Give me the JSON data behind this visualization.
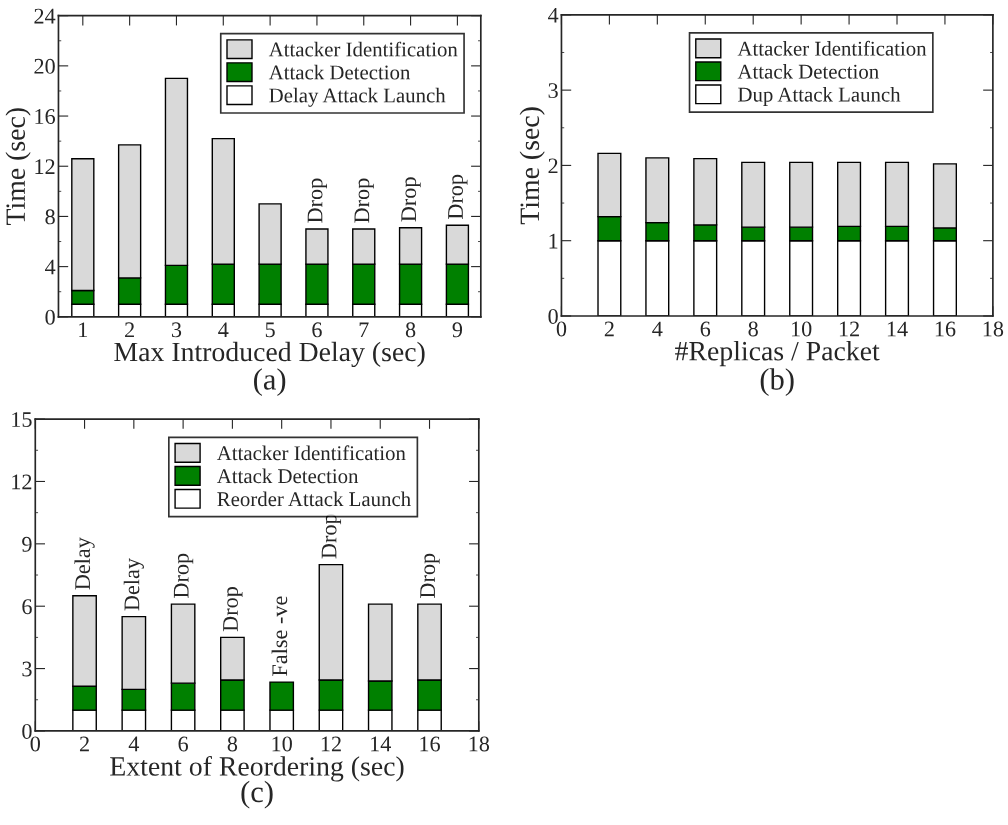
{
  "chart_data": [
    {
      "type": "bar",
      "stacked": true,
      "subtitle": "(a)",
      "xlabel": "Max Introduced Delay (sec)",
      "ylabel": "Time (sec)",
      "categories": [
        "1",
        "2",
        "3",
        "4",
        "5",
        "6",
        "7",
        "8",
        "9"
      ],
      "ylim": [
        0,
        24
      ],
      "yticks": [
        0,
        4,
        8,
        12,
        16,
        20,
        24
      ],
      "grid": false,
      "legend": "top right",
      "series": [
        {
          "name": "Delay Attack Launch",
          "color": "#ffffff",
          "values": [
            1,
            1,
            1,
            1,
            1,
            1,
            1,
            1,
            1
          ]
        },
        {
          "name": "Attack Detection",
          "color": "#008000",
          "values": [
            1.1,
            2.1,
            3.1,
            3.2,
            3.2,
            3.2,
            3.2,
            3.2,
            3.2
          ]
        },
        {
          "name": "Attacker Identification",
          "color": "#d9d9d9",
          "values": [
            10.5,
            10.6,
            14.9,
            10.0,
            4.8,
            2.8,
            2.8,
            2.9,
            3.1
          ]
        }
      ],
      "annotations": [
        {
          "text": "Drop",
          "x": "6",
          "y": 7.0
        },
        {
          "text": "Drop",
          "x": "7",
          "y": 7.0
        },
        {
          "text": "Drop",
          "x": "8",
          "y": 7.1
        },
        {
          "text": "Drop",
          "x": "9",
          "y": 7.3
        }
      ]
    },
    {
      "type": "bar",
      "stacked": true,
      "subtitle": "(b)",
      "xlabel": "#Replicas / Packet",
      "ylabel": "Time (sec)",
      "x": [
        2,
        4,
        6,
        8,
        10,
        12,
        14,
        16
      ],
      "xlim": [
        0,
        18
      ],
      "xticks": [
        0,
        2,
        4,
        6,
        8,
        10,
        12,
        14,
        16,
        18
      ],
      "ylim": [
        0,
        4
      ],
      "yticks": [
        0,
        1,
        2,
        3,
        4
      ],
      "grid": false,
      "legend": "top right",
      "series": [
        {
          "name": "Dup Attack Launch",
          "color": "#ffffff",
          "values": [
            1,
            1,
            1,
            1,
            1,
            1,
            1,
            1
          ]
        },
        {
          "name": "Attack Detection",
          "color": "#008000",
          "values": [
            0.32,
            0.24,
            0.21,
            0.18,
            0.18,
            0.19,
            0.19,
            0.17
          ]
        },
        {
          "name": "Attacker Identification",
          "color": "#d9d9d9",
          "values": [
            0.84,
            0.86,
            0.88,
            0.86,
            0.86,
            0.85,
            0.85,
            0.85
          ]
        }
      ]
    },
    {
      "type": "bar",
      "stacked": true,
      "subtitle": "(c)",
      "xlabel": "Extent of Reordering (sec)",
      "x": [
        2,
        4,
        6,
        8,
        10,
        12,
        14,
        16
      ],
      "xlim": [
        0,
        18
      ],
      "xticks": [
        0,
        2,
        4,
        6,
        8,
        10,
        12,
        14,
        16,
        18
      ],
      "ylim": [
        0,
        15
      ],
      "yticks": [
        0,
        3,
        6,
        9,
        12,
        15
      ],
      "grid": false,
      "legend": "top right",
      "series": [
        {
          "name": "Reorder Attack Launch",
          "color": "#ffffff",
          "values": [
            1,
            1,
            1,
            1,
            1,
            1,
            1,
            1
          ]
        },
        {
          "name": "Attack Detection",
          "color": "#008000",
          "values": [
            1.15,
            1.0,
            1.3,
            1.45,
            1.35,
            1.45,
            1.4,
            1.45
          ]
        },
        {
          "name": "Attacker Identification",
          "color": "#d9d9d9",
          "values": [
            4.35,
            3.5,
            3.8,
            2.05,
            null,
            5.55,
            3.7,
            3.65
          ]
        }
      ],
      "annotations": [
        {
          "text": "Delay",
          "x": 2,
          "y": 6.5
        },
        {
          "text": "Delay",
          "x": 4,
          "y": 5.5
        },
        {
          "text": "Drop",
          "x": 6,
          "y": 6.1
        },
        {
          "text": "Drop",
          "x": 8,
          "y": 4.5
        },
        {
          "text": "False -ve",
          "x": 10,
          "y": 2.35
        },
        {
          "text": "Drop",
          "x": 12,
          "y": 8.0
        },
        {
          "text": "Drop",
          "x": 16,
          "y": 6.1
        }
      ]
    }
  ]
}
